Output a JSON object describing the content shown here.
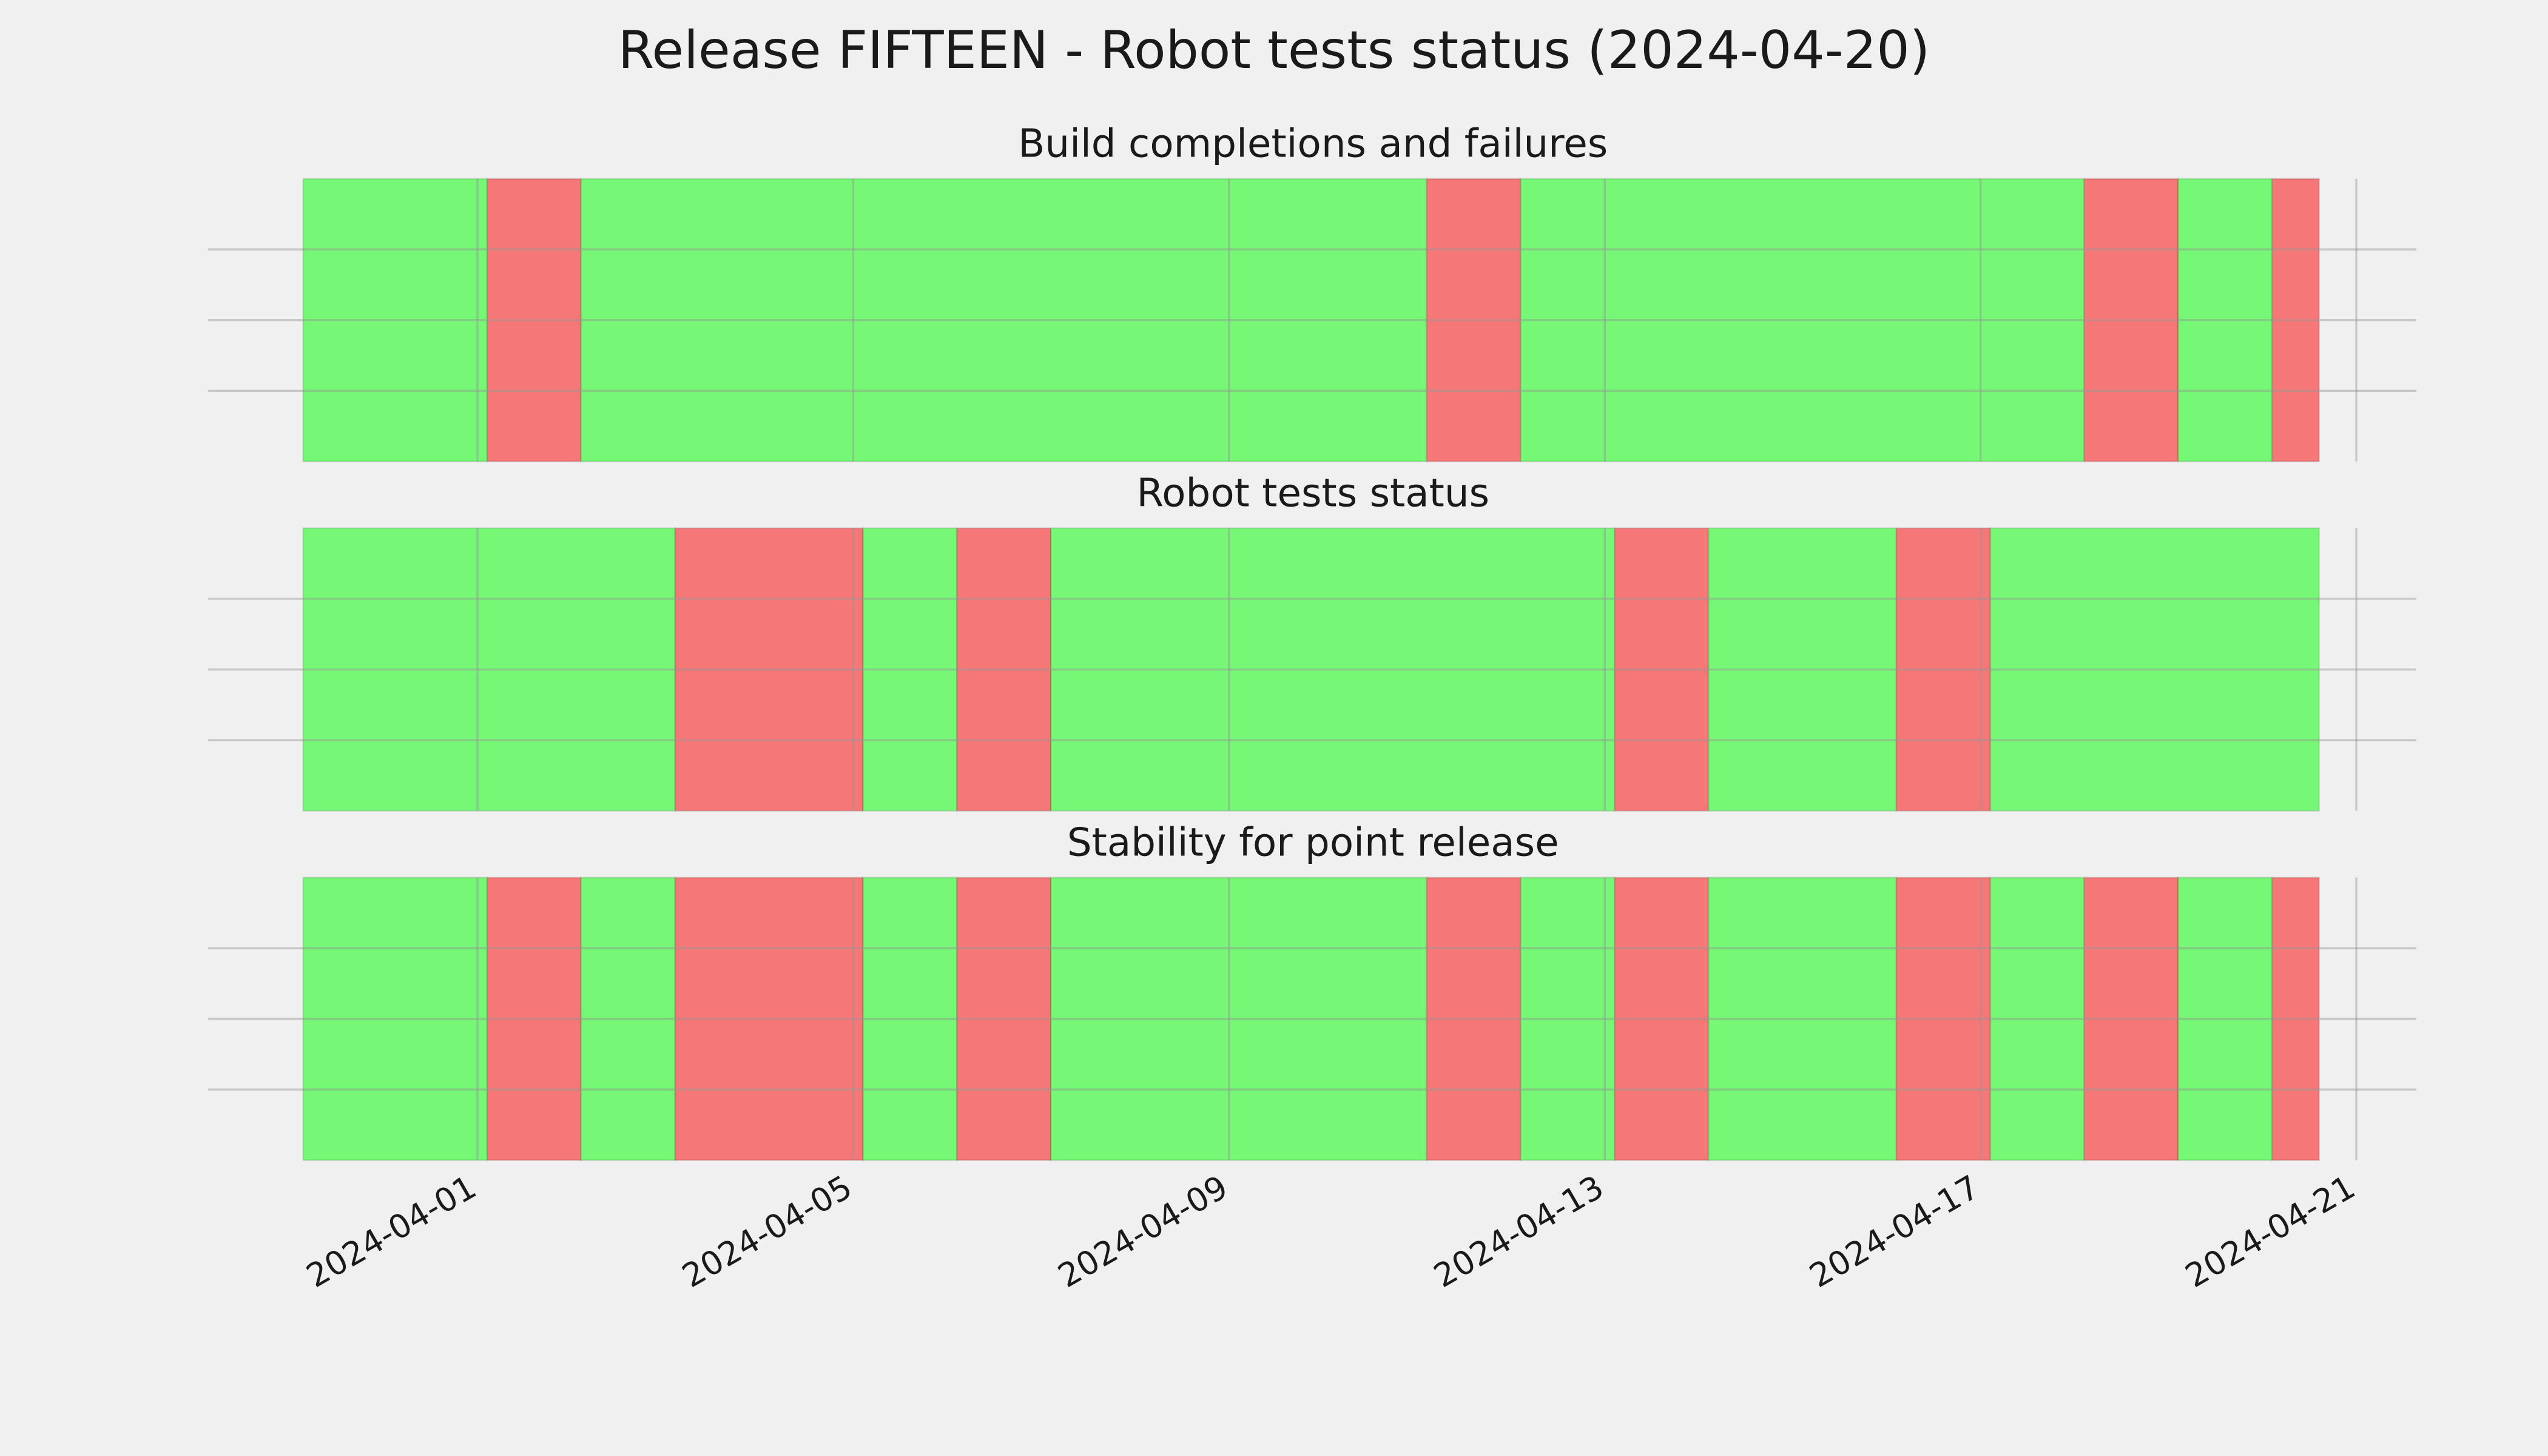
{
  "chart_data": {
    "type": "timeline",
    "title": "Release FIFTEEN - Robot tests status (2024-04-20)",
    "xlim": [
      "2024-03-29T03:10",
      "2024-04-21T15:20"
    ],
    "xticks": [
      "2024-04-01",
      "2024-04-05",
      "2024-04-09",
      "2024-04-13",
      "2024-04-17",
      "2024-04-21"
    ],
    "ylim": [
      0,
      1
    ],
    "yticks": [
      0.25,
      0.5,
      0.75
    ],
    "grid": true,
    "panels": [
      {
        "title": "Build completions and failures",
        "segments": [
          {
            "start": "2024-03-30T03:30",
            "end": "2024-04-01T02:30",
            "color": "#76f776"
          },
          {
            "start": "2024-04-01T02:30",
            "end": "2024-04-02T02:30",
            "color": "#f57777"
          },
          {
            "start": "2024-04-02T02:30",
            "end": "2024-04-11T02:30",
            "color": "#76f776"
          },
          {
            "start": "2024-04-11T02:30",
            "end": "2024-04-12T02:30",
            "color": "#f57777"
          },
          {
            "start": "2024-04-12T02:30",
            "end": "2024-04-18T02:30",
            "color": "#76f776"
          },
          {
            "start": "2024-04-18T02:30",
            "end": "2024-04-19T02:30",
            "color": "#f57777"
          },
          {
            "start": "2024-04-19T02:30",
            "end": "2024-04-20T02:30",
            "color": "#76f776"
          },
          {
            "start": "2024-04-20T02:30",
            "end": "2024-04-20T14:30",
            "color": "#f57777"
          }
        ]
      },
      {
        "title": "Robot tests status",
        "segments": [
          {
            "start": "2024-03-30T03:30",
            "end": "2024-04-03T02:30",
            "color": "#76f776"
          },
          {
            "start": "2024-04-03T02:30",
            "end": "2024-04-05T02:30",
            "color": "#f57777"
          },
          {
            "start": "2024-04-05T02:30",
            "end": "2024-04-06T02:30",
            "color": "#76f776"
          },
          {
            "start": "2024-04-06T02:30",
            "end": "2024-04-07T02:30",
            "color": "#f57777"
          },
          {
            "start": "2024-04-07T02:30",
            "end": "2024-04-13T02:30",
            "color": "#76f776"
          },
          {
            "start": "2024-04-13T02:30",
            "end": "2024-04-14T02:30",
            "color": "#f57777"
          },
          {
            "start": "2024-04-14T02:30",
            "end": "2024-04-16T02:30",
            "color": "#76f776"
          },
          {
            "start": "2024-04-16T02:30",
            "end": "2024-04-17T02:30",
            "color": "#f57777"
          },
          {
            "start": "2024-04-17T02:30",
            "end": "2024-04-20T14:30",
            "color": "#76f776"
          }
        ]
      },
      {
        "title": "Stability for point release",
        "segments": [
          {
            "start": "2024-03-30T03:30",
            "end": "2024-04-01T02:30",
            "color": "#76f776"
          },
          {
            "start": "2024-04-01T02:30",
            "end": "2024-04-02T02:30",
            "color": "#f57777"
          },
          {
            "start": "2024-04-02T02:30",
            "end": "2024-04-03T02:30",
            "color": "#76f776"
          },
          {
            "start": "2024-04-03T02:30",
            "end": "2024-04-05T02:30",
            "color": "#f57777"
          },
          {
            "start": "2024-04-05T02:30",
            "end": "2024-04-06T02:30",
            "color": "#76f776"
          },
          {
            "start": "2024-04-06T02:30",
            "end": "2024-04-07T02:30",
            "color": "#f57777"
          },
          {
            "start": "2024-04-07T02:30",
            "end": "2024-04-11T02:30",
            "color": "#76f776"
          },
          {
            "start": "2024-04-11T02:30",
            "end": "2024-04-12T02:30",
            "color": "#f57777"
          },
          {
            "start": "2024-04-12T02:30",
            "end": "2024-04-13T02:30",
            "color": "#76f776"
          },
          {
            "start": "2024-04-13T02:30",
            "end": "2024-04-14T02:30",
            "color": "#f57777"
          },
          {
            "start": "2024-04-14T02:30",
            "end": "2024-04-16T02:30",
            "color": "#76f776"
          },
          {
            "start": "2024-04-16T02:30",
            "end": "2024-04-17T02:30",
            "color": "#f57777"
          },
          {
            "start": "2024-04-17T02:30",
            "end": "2024-04-18T02:30",
            "color": "#76f776"
          },
          {
            "start": "2024-04-18T02:30",
            "end": "2024-04-19T02:30",
            "color": "#f57777"
          },
          {
            "start": "2024-04-19T02:30",
            "end": "2024-04-20T02:30",
            "color": "#76f776"
          },
          {
            "start": "2024-04-20T02:30",
            "end": "2024-04-20T14:30",
            "color": "#f57777"
          }
        ]
      }
    ]
  }
}
